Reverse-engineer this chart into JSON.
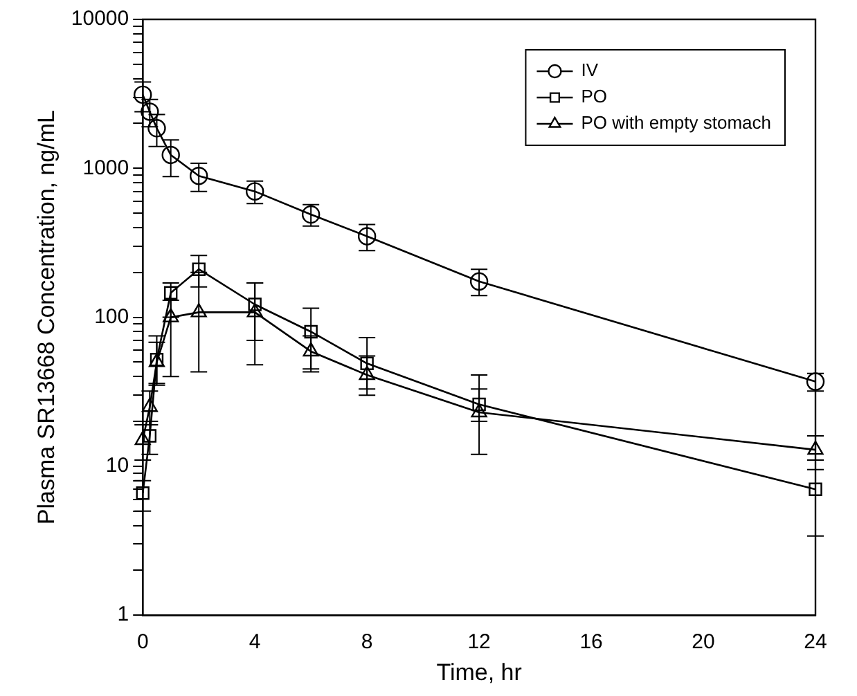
{
  "chart_data": {
    "type": "line",
    "xlabel": "Time, hr",
    "ylabel": "Plasma SR13668 Concentration, ng/mL",
    "log": "y",
    "grid": false,
    "legend": "top right",
    "line_style": "solid",
    "x": [
      0,
      0.25,
      0.5,
      1,
      2,
      4,
      6,
      8,
      12,
      24
    ],
    "xlim": [
      0,
      24
    ],
    "xticks": [
      0,
      4,
      8,
      12,
      16,
      20,
      24
    ],
    "ylim": [
      1,
      10000
    ],
    "yticks": [
      1,
      {
        "value": 2,
        "label": null
      },
      {
        "value": 3,
        "label": null
      },
      {
        "value": 4,
        "label": null
      },
      {
        "value": 5,
        "label": null
      },
      {
        "value": 6,
        "label": null
      },
      {
        "value": 7,
        "label": null
      },
      {
        "value": 8,
        "label": null
      },
      {
        "value": 9,
        "label": null
      },
      10,
      {
        "value": 20,
        "label": null
      },
      {
        "value": 30,
        "label": null
      },
      {
        "value": 40,
        "label": null
      },
      {
        "value": 50,
        "label": null
      },
      {
        "value": 60,
        "label": null
      },
      {
        "value": 70,
        "label": null
      },
      {
        "value": 80,
        "label": null
      },
      {
        "value": 90,
        "label": null
      },
      100,
      {
        "value": 200,
        "label": null
      },
      {
        "value": 300,
        "label": null
      },
      {
        "value": 400,
        "label": null
      },
      {
        "value": 500,
        "label": null
      },
      {
        "value": 600,
        "label": null
      },
      {
        "value": 700,
        "label": null
      },
      {
        "value": 800,
        "label": null
      },
      {
        "value": 900,
        "label": null
      },
      1000,
      {
        "value": 2000,
        "label": null
      },
      {
        "value": 3000,
        "label": null
      },
      {
        "value": 4000,
        "label": null
      },
      {
        "value": 5000,
        "label": null
      },
      {
        "value": 6000,
        "label": null
      },
      {
        "value": 7000,
        "label": null
      },
      {
        "value": 8000,
        "label": null
      },
      {
        "value": 9000,
        "label": null
      },
      10000
    ],
    "series": [
      {
        "name": "IV",
        "color": "#000000",
        "marker": "circle",
        "values": [
          3120,
          2400,
          1860,
          1230,
          890,
          700,
          490,
          350,
          174,
          37
        ],
        "errors": [
          [
            2400,
            3800
          ],
          [
            1900,
            2900
          ],
          [
            1400,
            2300
          ],
          [
            880,
            1550
          ],
          [
            700,
            1080
          ],
          [
            580,
            820
          ],
          [
            410,
            570
          ],
          [
            280,
            420
          ],
          [
            140,
            210
          ],
          [
            32,
            42
          ]
        ]
      },
      {
        "name": "PO",
        "color": "#000000",
        "marker": "square",
        "values": [
          6.6,
          16,
          52,
          146,
          210,
          122,
          80,
          49,
          26,
          7
        ],
        "errors": [
          [
            5,
            8
          ],
          [
            12,
            20
          ],
          [
            35,
            75
          ],
          [
            100,
            170
          ],
          [
            160,
            260
          ],
          [
            70,
            170
          ],
          [
            45,
            115
          ],
          [
            33,
            73
          ],
          [
            20,
            33
          ],
          [
            3.4,
            11
          ]
        ]
      },
      {
        "name": "PO with empty stomach",
        "color": "#000000",
        "marker": "triangle",
        "values": [
          15,
          25,
          50,
          100,
          108,
          108,
          59,
          41,
          23,
          12.9
        ],
        "errors": [
          [
            11,
            19
          ],
          [
            19,
            32
          ],
          [
            36,
            68
          ],
          [
            40,
            130
          ],
          [
            43,
            200
          ],
          [
            48,
            170
          ],
          [
            43,
            75
          ],
          [
            30,
            55
          ],
          [
            12,
            41
          ],
          [
            9.5,
            16
          ]
        ]
      }
    ]
  }
}
